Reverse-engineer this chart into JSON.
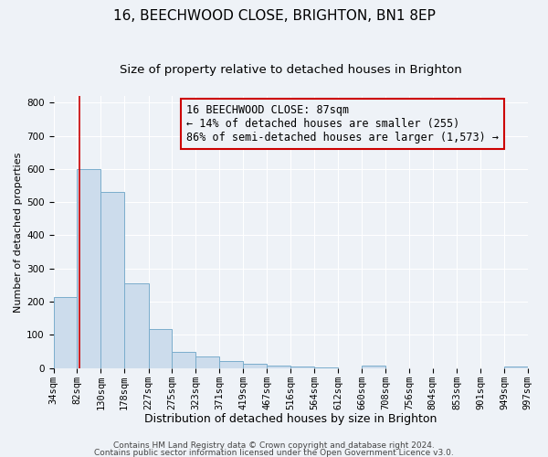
{
  "title": "16, BEECHWOOD CLOSE, BRIGHTON, BN1 8EP",
  "subtitle": "Size of property relative to detached houses in Brighton",
  "xlabel": "Distribution of detached houses by size in Brighton",
  "ylabel": "Number of detached properties",
  "bin_edges": [
    34,
    82,
    130,
    178,
    227,
    275,
    323,
    371,
    419,
    467,
    516,
    564,
    612,
    660,
    708,
    756,
    804,
    853,
    901,
    949,
    997
  ],
  "bar_heights": [
    215,
    600,
    530,
    255,
    118,
    50,
    35,
    20,
    12,
    7,
    5,
    2,
    0,
    8,
    0,
    0,
    0,
    0,
    0,
    5
  ],
  "bar_color": "#ccdcec",
  "bar_edge_color": "#7aadcc",
  "vline_x": 87,
  "vline_color": "#cc0000",
  "annotation_line1": "16 BEECHWOOD CLOSE: 87sqm",
  "annotation_line2": "← 14% of detached houses are smaller (255)",
  "annotation_line3": "86% of semi-detached houses are larger (1,573) →",
  "ylim": [
    0,
    820
  ],
  "yticks": [
    0,
    100,
    200,
    300,
    400,
    500,
    600,
    700,
    800
  ],
  "footnote1": "Contains HM Land Registry data © Crown copyright and database right 2024.",
  "footnote2": "Contains public sector information licensed under the Open Government Licence v3.0.",
  "background_color": "#eef2f7",
  "plot_bg_color": "#eef2f7",
  "grid_color": "#ffffff",
  "title_fontsize": 11,
  "subtitle_fontsize": 9.5,
  "xlabel_fontsize": 9,
  "ylabel_fontsize": 8,
  "tick_fontsize": 7.5,
  "annotation_fontsize": 8.5,
  "footnote_fontsize": 6.5
}
